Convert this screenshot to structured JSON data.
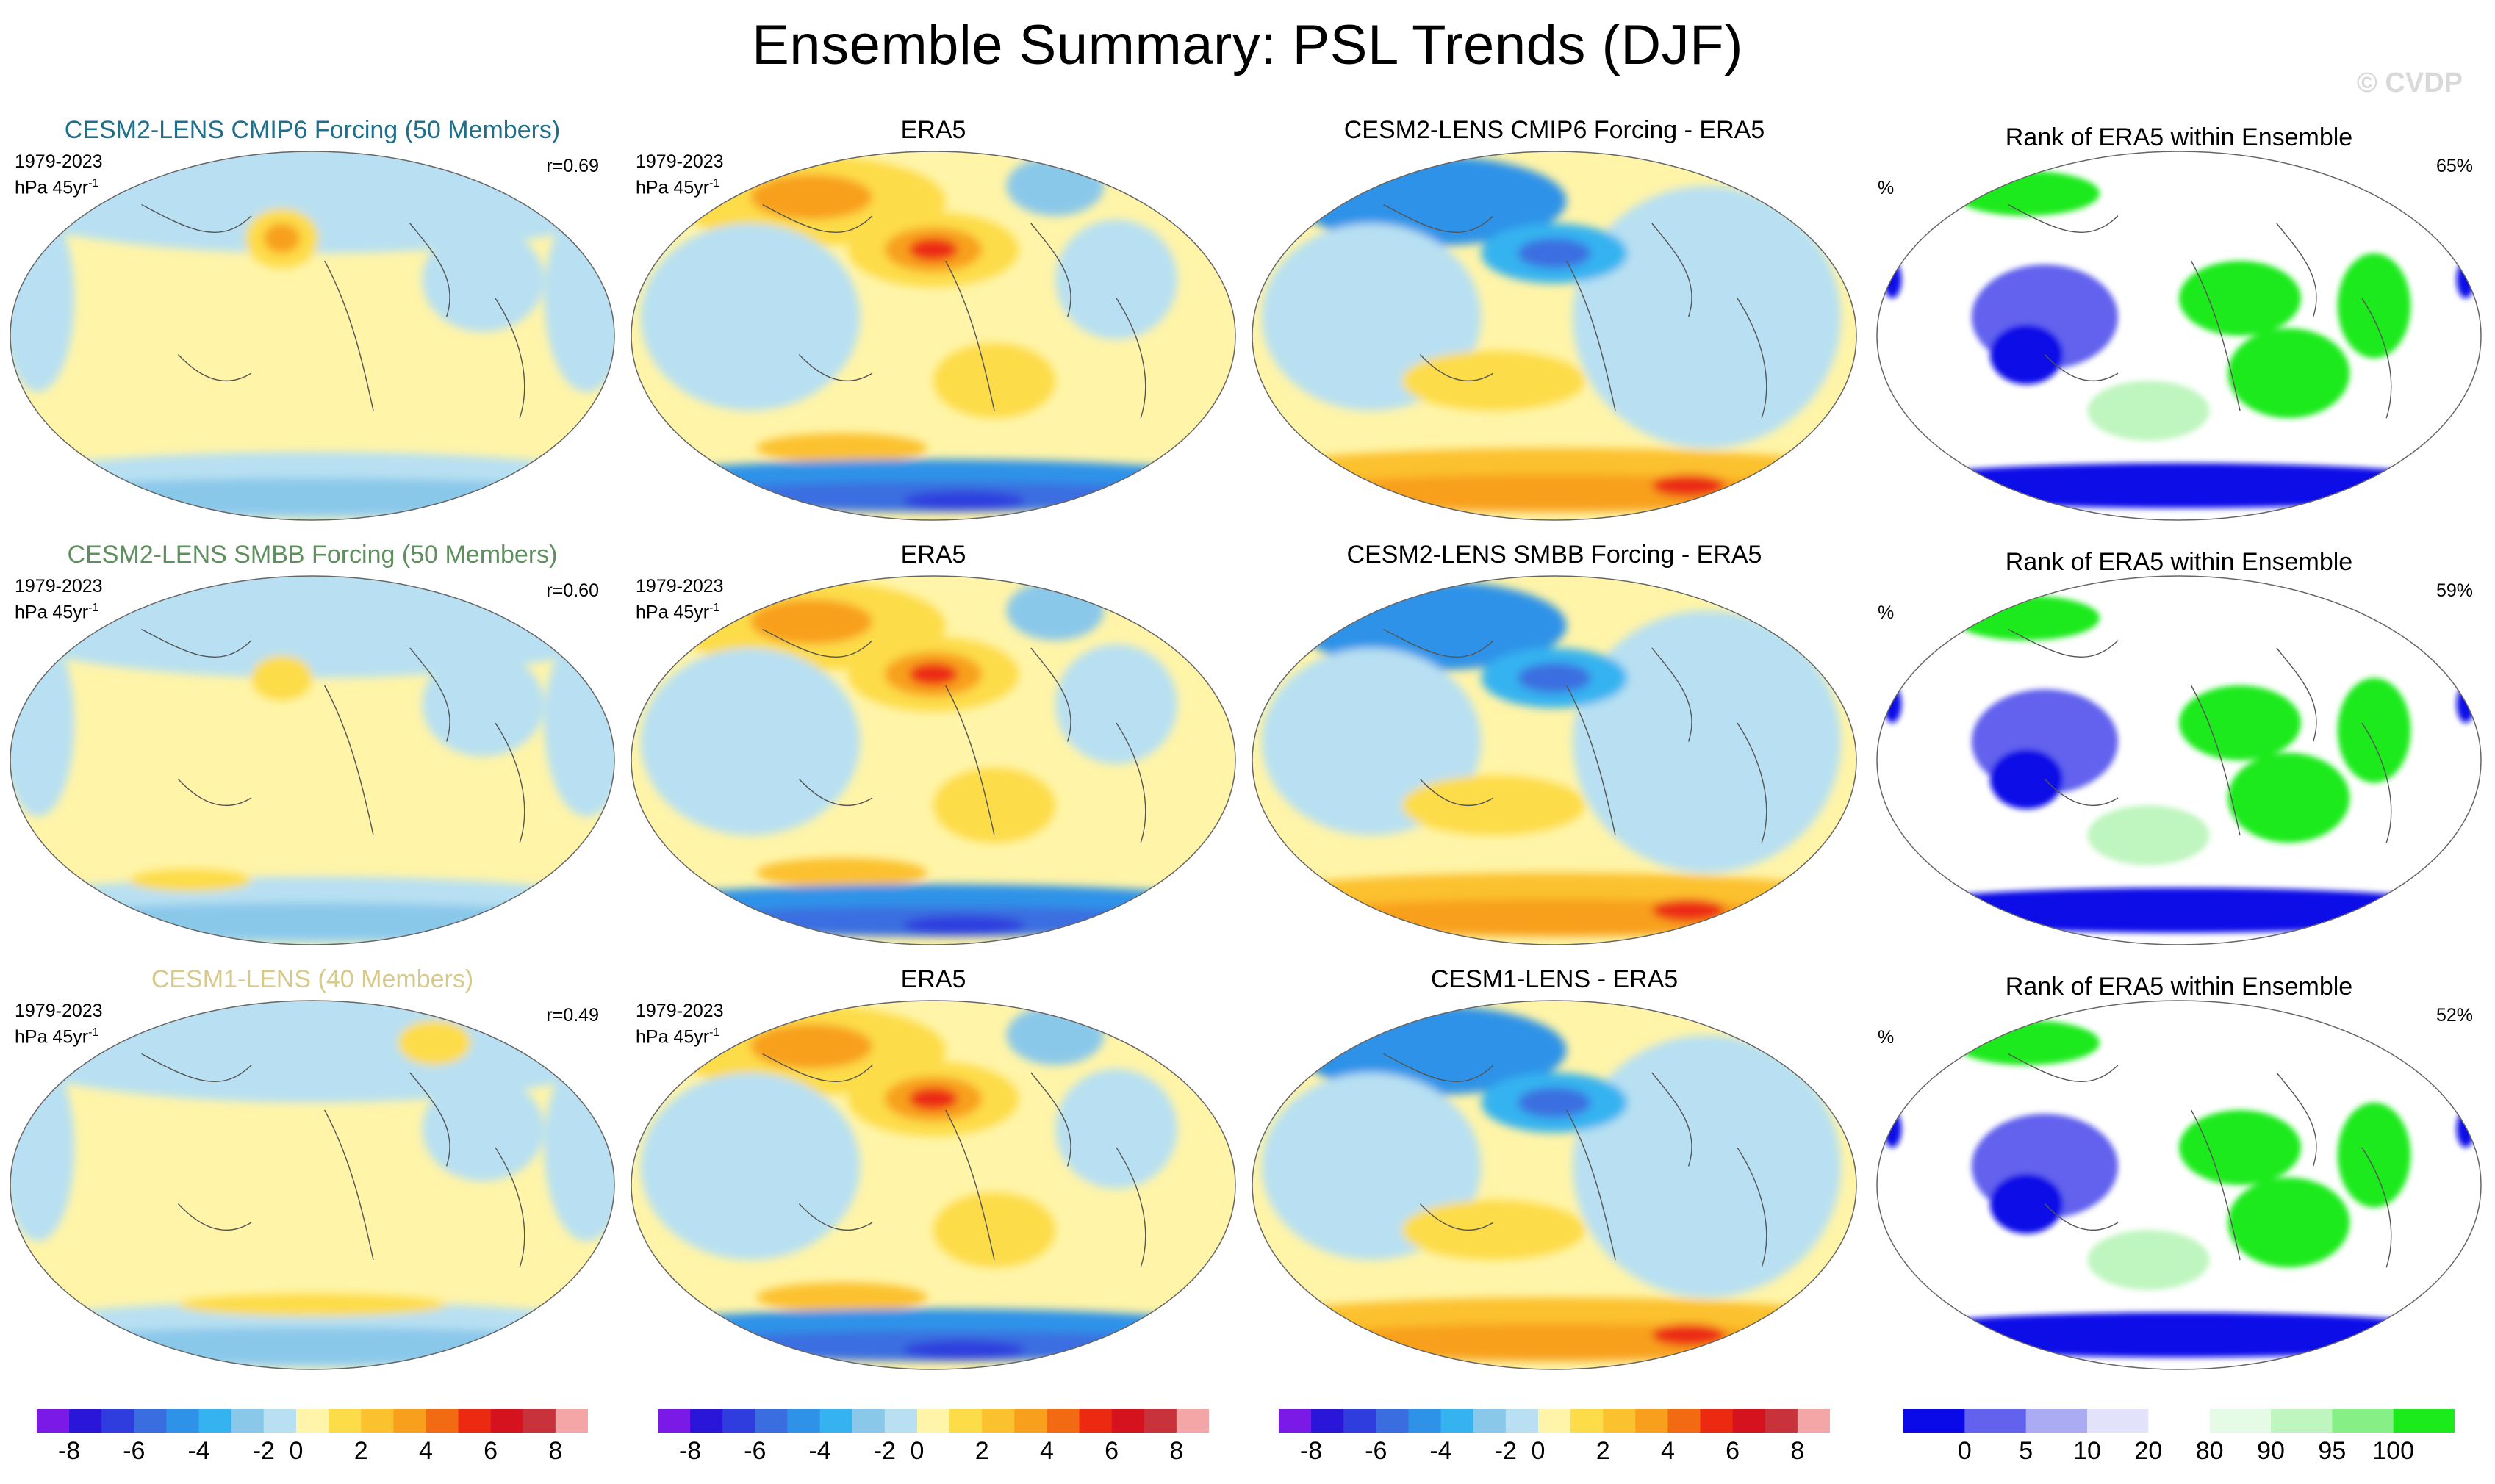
{
  "title": "Ensemble Summary: PSL Trends (DJF)",
  "watermark": "© CVDP",
  "rows": [
    {
      "model_title": "CESM2-LENS CMIP6 Forcing (50 Members)",
      "model_title_color": "#1f6f8b",
      "period": "1979-2023",
      "units_prefix": "hPa 45yr",
      "units_exp": "-1",
      "correlation": "r=0.69",
      "obs_title": "ERA5",
      "diff_title": "CESM2-LENS CMIP6 Forcing - ERA5",
      "rank_title": "Rank of ERA5 within Ensemble",
      "rank_units": "%",
      "rank_percent": "65%"
    },
    {
      "model_title": "CESM2-LENS SMBB Forcing (50 Members)",
      "model_title_color": "#5f8f5f",
      "period": "1979-2023",
      "units_prefix": "hPa 45yr",
      "units_exp": "-1",
      "correlation": "r=0.60",
      "obs_title": "ERA5",
      "diff_title": "CESM2-LENS SMBB Forcing - ERA5",
      "rank_title": "Rank of ERA5 within Ensemble",
      "rank_units": "%",
      "rank_percent": "59%"
    },
    {
      "model_title": "CESM1-LENS (40 Members)",
      "model_title_color": "#d6c98a",
      "period": "1979-2023",
      "units_prefix": "hPa 45yr",
      "units_exp": "-1",
      "correlation": "r=0.49",
      "obs_title": "ERA5",
      "diff_title": "CESM1-LENS - ERA5",
      "rank_title": "Rank of ERA5 within Ensemble",
      "rank_units": "%",
      "rank_percent": "52%"
    }
  ],
  "colorbars": {
    "trend_colors": [
      "#7b19e6",
      "#2a16d8",
      "#2f3dde",
      "#3a6ee0",
      "#2e93e8",
      "#35b3f0",
      "#8ac8ea",
      "#b8e0f2",
      "#fff4a8",
      "#fddc4a",
      "#fcc12f",
      "#f8a01e",
      "#f26a12",
      "#ec2a12",
      "#d4131e",
      "#c8323a",
      "#f4a6a6"
    ],
    "trend_labels": [
      "-8",
      "-6",
      "-4",
      "-2",
      "0",
      "2",
      "4",
      "6",
      "8"
    ],
    "rank_colors": [
      "#0a0ae8",
      "#6262ee",
      "#ababf4",
      "#e2e2fa",
      "#ffffff",
      "#e6fbe6",
      "#bff5bf",
      "#86ef86",
      "#1bea1b"
    ],
    "rank_labels": [
      "0",
      "5",
      "10",
      "20",
      "80",
      "90",
      "95",
      "100"
    ]
  },
  "chart_data": [
    {
      "type": "heatmap",
      "title": "CESM2-LENS CMIP6 Forcing (50 Members)",
      "variable": "PSL trend",
      "units": "hPa 45yr-1",
      "period": "1979-2023",
      "season": "DJF",
      "pattern_correlation": 0.69,
      "colorbar_range": [
        -8,
        8
      ]
    },
    {
      "type": "heatmap",
      "title": "ERA5",
      "variable": "PSL trend",
      "units": "hPa 45yr-1",
      "period": "1979-2023",
      "season": "DJF",
      "colorbar_range": [
        -8,
        8
      ]
    },
    {
      "type": "heatmap",
      "title": "CESM2-LENS CMIP6 Forcing - ERA5",
      "colorbar_range": [
        -8,
        8
      ]
    },
    {
      "type": "heatmap",
      "title": "Rank of ERA5 within Ensemble",
      "units": "%",
      "area_percent": 65,
      "colorbar_levels": [
        0,
        5,
        10,
        20,
        80,
        90,
        95,
        100
      ]
    },
    {
      "type": "heatmap",
      "title": "CESM2-LENS SMBB Forcing (50 Members)",
      "pattern_correlation": 0.6,
      "colorbar_range": [
        -8,
        8
      ]
    },
    {
      "type": "heatmap",
      "title": "ERA5",
      "colorbar_range": [
        -8,
        8
      ]
    },
    {
      "type": "heatmap",
      "title": "CESM2-LENS SMBB Forcing - ERA5",
      "colorbar_range": [
        -8,
        8
      ]
    },
    {
      "type": "heatmap",
      "title": "Rank of ERA5 within Ensemble",
      "units": "%",
      "area_percent": 59
    },
    {
      "type": "heatmap",
      "title": "CESM1-LENS (40 Members)",
      "pattern_correlation": 0.49,
      "colorbar_range": [
        -8,
        8
      ]
    },
    {
      "type": "heatmap",
      "title": "ERA5",
      "colorbar_range": [
        -8,
        8
      ]
    },
    {
      "type": "heatmap",
      "title": "CESM1-LENS - ERA5",
      "colorbar_range": [
        -8,
        8
      ]
    },
    {
      "type": "heatmap",
      "title": "Rank of ERA5 within Ensemble",
      "units": "%",
      "area_percent": 52
    }
  ]
}
